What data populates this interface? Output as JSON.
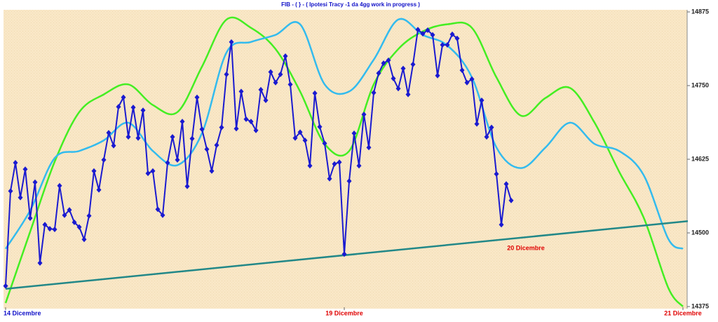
{
  "chart_data": {
    "type": "line",
    "title": "FIB  -  ( } - ( Ipotesi Tracy -1 da 4gg work in progress )",
    "ylim": [
      14375,
      14875
    ],
    "yticks": [
      14375,
      14500,
      14625,
      14750,
      14875
    ],
    "xlim": [
      -0.4,
      139
    ],
    "xticks": [
      {
        "value": 0,
        "label": "14 Dicembre"
      },
      {
        "value": 69,
        "label": "19 Dicembre"
      },
      {
        "value": 138,
        "label": "21 Dicembre"
      }
    ],
    "xtick_colors": [
      "#1010c8",
      "#e00000",
      "#e00000"
    ],
    "annotations": [
      "20 Dicembre"
    ],
    "annotation_color": "#e00000",
    "series": [
      {
        "color": "#44ee22",
        "x": [
          0,
          5,
          10,
          15,
          20,
          25,
          30,
          35,
          40,
          45,
          50,
          55,
          60,
          65,
          70,
          75,
          80,
          85,
          90,
          95,
          100,
          105,
          110,
          115,
          120,
          125,
          130,
          135,
          138
        ],
        "values": [
          14381,
          14502,
          14621,
          14705,
          14735,
          14752,
          14717,
          14705,
          14782,
          14862,
          14848,
          14812,
          14740,
          14651,
          14639,
          14752,
          14812,
          14842,
          14854,
          14848,
          14764,
          14699,
          14729,
          14746,
          14687,
          14604,
          14526,
          14407,
          14375
        ]
      },
      {
        "color": "#33bbee",
        "x": [
          0,
          5,
          10,
          15,
          20,
          25,
          30,
          35,
          40,
          45,
          50,
          55,
          60,
          65,
          70,
          75,
          80,
          85,
          90,
          95,
          100,
          105,
          110,
          115,
          120,
          125,
          130,
          135,
          138
        ],
        "values": [
          14473,
          14538,
          14627,
          14639,
          14657,
          14687,
          14639,
          14615,
          14669,
          14806,
          14824,
          14836,
          14854,
          14752,
          14740,
          14794,
          14862,
          14836,
          14818,
          14764,
          14645,
          14610,
          14645,
          14687,
          14651,
          14639,
          14598,
          14490,
          14473
        ]
      },
      {
        "color": "#228888",
        "x": [
          0,
          139
        ],
        "values": [
          14405,
          14520
        ]
      },
      {
        "color": "#1a1ad0",
        "markers": true,
        "x": [
          0,
          1,
          2,
          3,
          4,
          5,
          6,
          7,
          8,
          9,
          10,
          11,
          12,
          13,
          14,
          15,
          16,
          17,
          18,
          19,
          20,
          21,
          22,
          23,
          24,
          25,
          26,
          27,
          28,
          29,
          30,
          31,
          32,
          33,
          34,
          35,
          36,
          37,
          38,
          39,
          40,
          41,
          42,
          43,
          44,
          45,
          46,
          47,
          48,
          49,
          50,
          51,
          52,
          53,
          54,
          55,
          56,
          57,
          58,
          59,
          60,
          61,
          62,
          63,
          64,
          65,
          66,
          67,
          68,
          69,
          70,
          71,
          72,
          73,
          74,
          75,
          76,
          77,
          78,
          79,
          80,
          81,
          82,
          83,
          84,
          85,
          86,
          87,
          88,
          89,
          90,
          91,
          92,
          93,
          94,
          95,
          96,
          97,
          98,
          99,
          100,
          101,
          102,
          103
        ],
        "values": [
          14410,
          14571,
          14619,
          14560,
          14608,
          14525,
          14586,
          14449,
          14514,
          14507,
          14506,
          14580,
          14530,
          14539,
          14518,
          14510,
          14489,
          14529,
          14605,
          14573,
          14624,
          14670,
          14648,
          14714,
          14730,
          14663,
          14713,
          14661,
          14708,
          14601,
          14605,
          14540,
          14530,
          14619,
          14663,
          14624,
          14689,
          14579,
          14660,
          14730,
          14676,
          14642,
          14605,
          14649,
          14679,
          14769,
          14824,
          14677,
          14740,
          14693,
          14689,
          14674,
          14743,
          14725,
          14773,
          14755,
          14769,
          14800,
          14752,
          14661,
          14671,
          14657,
          14614,
          14737,
          14680,
          14652,
          14592,
          14617,
          14620,
          14464,
          14588,
          14669,
          14614,
          14701,
          14645,
          14738,
          14771,
          14788,
          14793,
          14762,
          14745,
          14779,
          14735,
          14786,
          14845,
          14838,
          14844,
          14836,
          14767,
          14819,
          14819,
          14837,
          14830,
          14776,
          14755,
          14761,
          14685,
          14725,
          14663,
          14679,
          14600,
          14514,
          14583,
          14555
        ]
      }
    ]
  }
}
